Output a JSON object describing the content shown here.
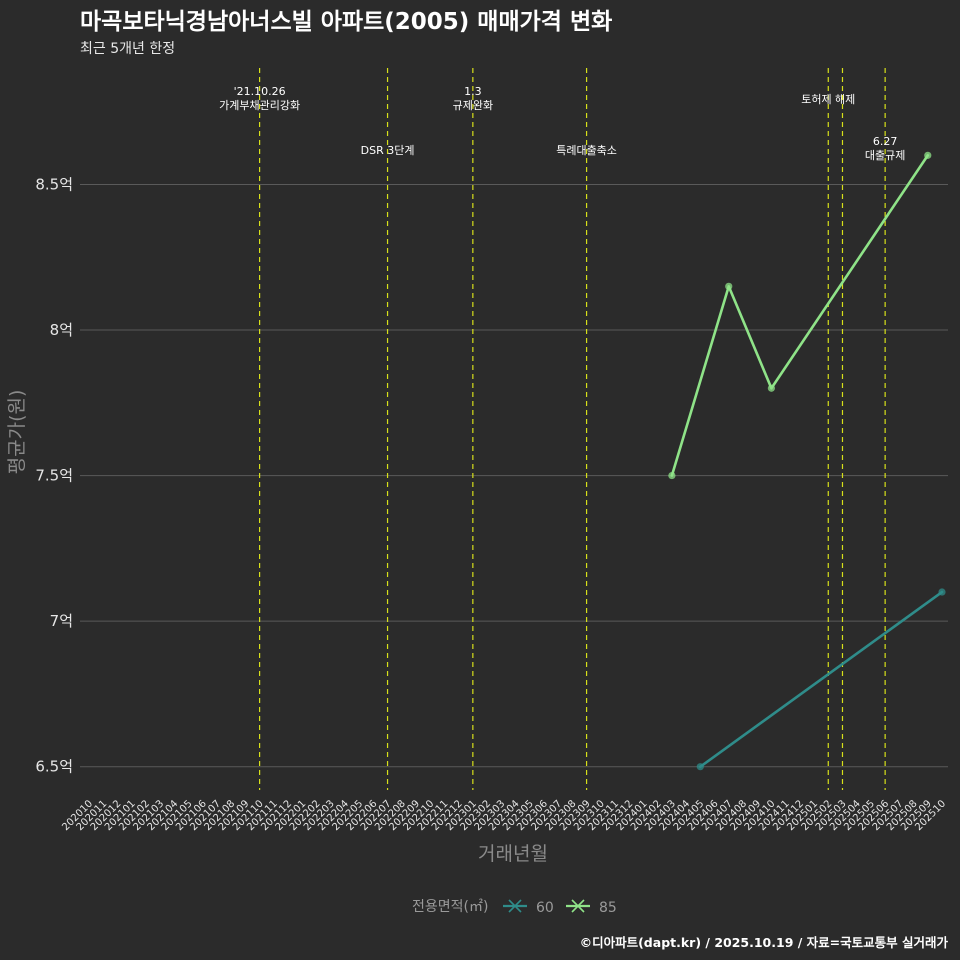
{
  "chart_data": {
    "type": "line",
    "title": "마곡보타닉경남아너스빌 아파트(2005) 매매가격 변화",
    "subtitle": "최근 5개년 한정",
    "xlabel": "거래년월",
    "ylabel": "평균가(원)",
    "yticks": [
      {
        "value": 6.5,
        "label": "6.5억"
      },
      {
        "value": 7.0,
        "label": "7억"
      },
      {
        "value": 7.5,
        "label": "7.5억"
      },
      {
        "value": 8.0,
        "label": "8억"
      },
      {
        "value": 8.5,
        "label": "8.5억"
      }
    ],
    "ylim": [
      6.42,
      8.9
    ],
    "categories": [
      "202010",
      "202011",
      "202012",
      "202101",
      "202102",
      "202103",
      "202104",
      "202105",
      "202106",
      "202107",
      "202108",
      "202109",
      "202110",
      "202111",
      "202112",
      "202201",
      "202202",
      "202203",
      "202204",
      "202205",
      "202206",
      "202207",
      "202208",
      "202209",
      "202210",
      "202211",
      "202212",
      "202301",
      "202302",
      "202303",
      "202304",
      "202305",
      "202306",
      "202307",
      "202308",
      "202309",
      "202310",
      "202311",
      "202312",
      "202401",
      "202402",
      "202403",
      "202404",
      "202405",
      "202406",
      "202407",
      "202408",
      "202409",
      "202410",
      "202411",
      "202412",
      "202501",
      "202502",
      "202503",
      "202504",
      "202505",
      "202506",
      "202507",
      "202508",
      "202509",
      "202510"
    ],
    "series": [
      {
        "name": "60",
        "color": "#2f8c8a",
        "points": [
          {
            "x": "202405",
            "y": 6.5
          },
          {
            "x": "202510",
            "y": 7.1
          }
        ]
      },
      {
        "name": "85",
        "color": "#8fe388",
        "points": [
          {
            "x": "202403",
            "y": 7.5
          },
          {
            "x": "202407",
            "y": 8.15
          },
          {
            "x": "202410",
            "y": 7.8
          },
          {
            "x": "202509",
            "y": 8.6
          }
        ]
      }
    ],
    "events": [
      {
        "x": "202110",
        "lines": [
          "'21.10.26",
          "가계부채관리강화"
        ],
        "level": "top"
      },
      {
        "x": "202207",
        "lines": [
          "DSR 3단계"
        ],
        "level": "low"
      },
      {
        "x": "202301",
        "lines": [
          "1.3",
          "규제완화"
        ],
        "level": "top"
      },
      {
        "x": "202309",
        "lines": [
          "특례대출축소"
        ],
        "level": "low"
      },
      {
        "x": "202502",
        "lines": [
          "토허제 해제"
        ],
        "level": "mid"
      },
      {
        "x": "202503",
        "lines": [],
        "level": "mid"
      },
      {
        "x": "202506",
        "lines": [
          "6.27",
          "대출규제"
        ],
        "level": "low2"
      }
    ],
    "legend": {
      "title": "전용면적(㎡)",
      "position": "bottom"
    },
    "event_line_color": "#d7e01a",
    "grid_color": "#5a5a5a",
    "footer": "©디아파트(dapt.kr) / 2025.10.19 / 자료=국토교통부 실거래가"
  }
}
